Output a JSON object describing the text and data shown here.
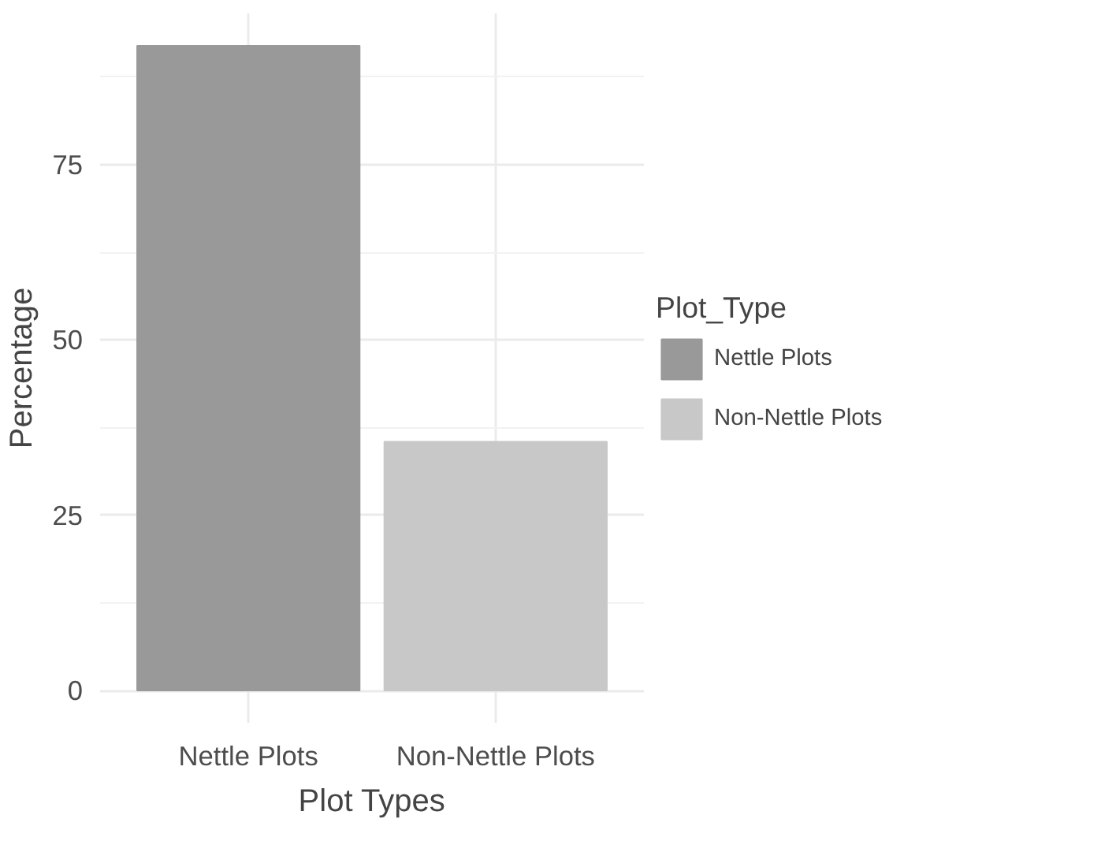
{
  "chart_data": {
    "type": "bar",
    "xlabel": "Plot Types",
    "ylabel": "Percentage",
    "legend_title": "Plot_Type",
    "categories": [
      "Nettle Plots",
      "Non-Nettle Plots"
    ],
    "series": [
      {
        "name": "Nettle Plots",
        "color": "#999999",
        "values": [
          92.0,
          null
        ]
      },
      {
        "name": "Non-Nettle Plots",
        "color": "#c8c8c8",
        "values": [
          null,
          35.5
        ]
      }
    ],
    "ylim": [
      -4.6,
      96.6
    ],
    "yticks": [
      0,
      25,
      50,
      75
    ],
    "grid": true,
    "legend": "right"
  }
}
